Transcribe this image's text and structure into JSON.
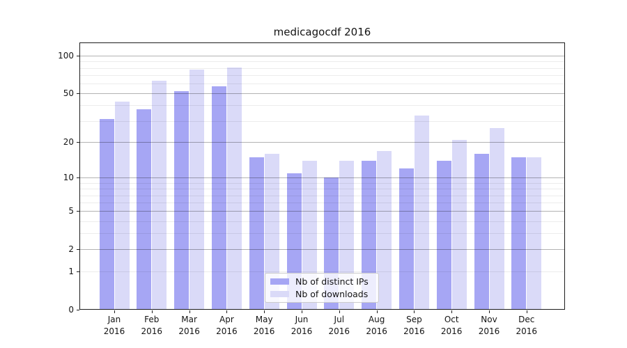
{
  "title": "medicagocdf 2016",
  "chart_data": {
    "type": "bar",
    "title": "medicagocdf 2016",
    "categories": [
      "Jan 2016",
      "Feb 2016",
      "Mar 2016",
      "Apr 2016",
      "May 2016",
      "Jun 2016",
      "Jul 2016",
      "Aug 2016",
      "Sep 2016",
      "Oct 2016",
      "Nov 2016",
      "Dec 2016"
    ],
    "x_tick_months": [
      "Jan",
      "Feb",
      "Mar",
      "Apr",
      "May",
      "Jun",
      "Jul",
      "Aug",
      "Sep",
      "Oct",
      "Nov",
      "Dec"
    ],
    "x_tick_year": "2016",
    "series": [
      {
        "name": "Nb of distinct IPs",
        "color": "#a6a6f4",
        "values": [
          31,
          37,
          52,
          57,
          15,
          11,
          10,
          14,
          12,
          14,
          16,
          15
        ]
      },
      {
        "name": "Nb of downloads",
        "color": "#dadaf8",
        "values": [
          43,
          63,
          78,
          81,
          16,
          14,
          14,
          17,
          33,
          21,
          26,
          15
        ]
      }
    ],
    "xlabel": "",
    "ylabel": "",
    "yscale": "log1p (symlog-like, 0 shown on axis)",
    "ylim": [
      0,
      130
    ],
    "y_ticks": [
      0,
      1,
      2,
      5,
      10,
      20,
      50,
      100
    ],
    "y_tick_labels": [
      "0",
      "1",
      "2",
      "5",
      "10",
      "20",
      "50",
      "100"
    ],
    "grid_major_values": [
      2,
      5,
      10,
      20,
      50,
      100
    ],
    "grid_minor_values": [
      1,
      3,
      4,
      6,
      7,
      8,
      9,
      30,
      40,
      60,
      70,
      80,
      90
    ],
    "grid": "on (horizontal only, drawn above bars)",
    "legend_position": "lower center",
    "legend_entries": [
      "Nb of distinct IPs",
      "Nb of downloads"
    ]
  },
  "colors": {
    "background": "#ffffff",
    "spine": "#1c1c1c",
    "distinct_ips_bar": "#a6a6f4",
    "downloads_bar": "#dadaf8"
  }
}
